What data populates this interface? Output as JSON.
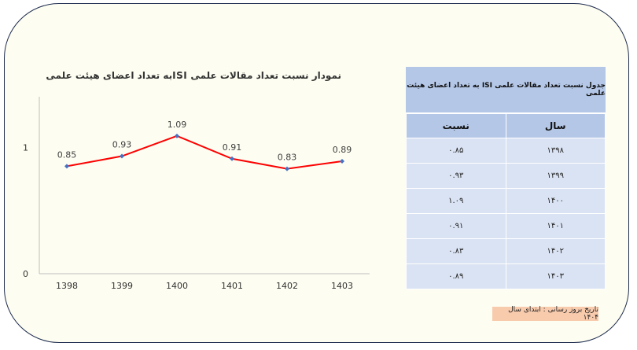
{
  "chart_data": {
    "type": "line",
    "title": "نمودار نسبت تعداد مقالات علمی  ISIبه تعداد اعضای هیئت علمی",
    "categories": [
      "1398",
      "1399",
      "1400",
      "1401",
      "1402",
      "1403"
    ],
    "values": [
      0.85,
      0.93,
      1.09,
      0.91,
      0.83,
      0.89
    ],
    "data_labels": [
      "0.85",
      "0.93",
      "1.09",
      "0.91",
      "0.83",
      "0.89"
    ],
    "y_ticks": [
      "0",
      "1"
    ],
    "ylim": [
      0,
      1.4
    ],
    "line_color": "#ff0000",
    "marker_color": "#4472c4",
    "grid": false
  },
  "table": {
    "title": "جدول نسبت تعداد مقالات علمی ISI به تعداد اعضای هیئت علمی",
    "headers": {
      "year": "سال",
      "ratio": "نسبت"
    },
    "rows": [
      {
        "year": "۱۳۹۸",
        "ratio": "۰.۸۵"
      },
      {
        "year": "۱۳۹۹",
        "ratio": "۰.۹۳"
      },
      {
        "year": "۱۴۰۰",
        "ratio": "۱.۰۹"
      },
      {
        "year": "۱۴۰۱",
        "ratio": "۰.۹۱"
      },
      {
        "year": "۱۴۰۲",
        "ratio": "۰.۸۳"
      },
      {
        "year": "۱۴۰۳",
        "ratio": "۰.۸۹"
      }
    ],
    "header_color": "#b4c7e7",
    "row_color": "#dae3f3"
  },
  "note": {
    "text": "تاریخ بروز رسانی : ابتدای سال ۱۴۰۴",
    "color": "#f8cbad"
  }
}
